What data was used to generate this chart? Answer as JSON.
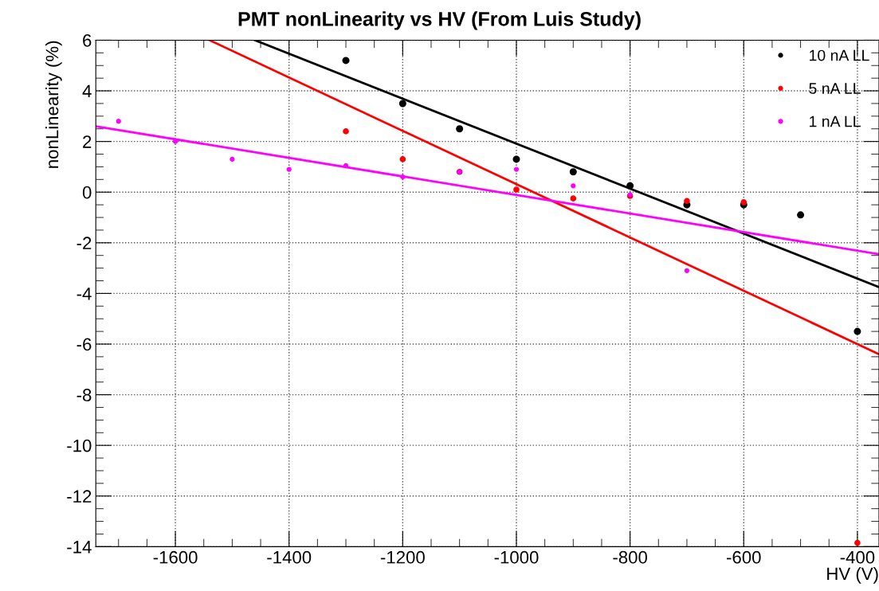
{
  "chart_data": {
    "type": "scatter",
    "title": "PMT nonLinearity vs HV (From Luis Study)",
    "xlabel": "HV (V)",
    "ylabel": "nonLinearity (%)",
    "xlim": [
      -1740,
      -362
    ],
    "xticks": [
      -1600,
      -1400,
      -1200,
      -1000,
      -800,
      -600,
      -400
    ],
    "ylim": [
      -14,
      6
    ],
    "yticks": [
      -14,
      -12,
      -10,
      -8,
      -6,
      -4,
      -2,
      0,
      2,
      4,
      6
    ],
    "grid": true,
    "legend": "top right",
    "series": [
      {
        "name": "10 nA LL",
        "marker": "circle",
        "color": "#000000",
        "x": [
          -1300,
          -1200,
          -1100,
          -1000,
          -900,
          -800,
          -700,
          -600,
          -500,
          -400
        ],
        "values": [
          5.2,
          3.5,
          2.5,
          1.3,
          0.8,
          0.25,
          -0.5,
          -0.5,
          -0.9,
          -5.5
        ]
      },
      {
        "name": "5 nA LL",
        "marker": "circle",
        "color": "#ff0000",
        "x": [
          -1300,
          -1200,
          -1100,
          -1000,
          -900,
          -800,
          -700,
          -600,
          -400
        ],
        "values": [
          2.4,
          1.3,
          0.8,
          0.1,
          -0.25,
          -0.15,
          -0.35,
          -0.4,
          -13.85
        ]
      },
      {
        "name": "1 nA LL",
        "marker": "circle",
        "color": "#ff00ff",
        "x": [
          -1700,
          -1600,
          -1500,
          -1400,
          -1300,
          -1200,
          -1100,
          -1000,
          -900,
          -800,
          -700
        ],
        "values": [
          2.8,
          2.0,
          1.3,
          0.9,
          1.05,
          0.6,
          0.8,
          0.9,
          0.25,
          -0.1,
          -3.1
        ]
      },
      {
        "type": "line",
        "marker": "none",
        "color": "#000000",
        "x": [
          -1460,
          -362
        ],
        "values": [
          6,
          -3.75
        ]
      },
      {
        "type": "line",
        "marker": "none",
        "color": "#ff0000",
        "x": [
          -1540,
          -362
        ],
        "values": [
          6,
          -6.4
        ]
      },
      {
        "type": "line",
        "marker": "none",
        "color": "#ff00ff",
        "x": [
          -1740,
          -362
        ],
        "values": [
          2.6,
          -2.45
        ]
      }
    ]
  }
}
